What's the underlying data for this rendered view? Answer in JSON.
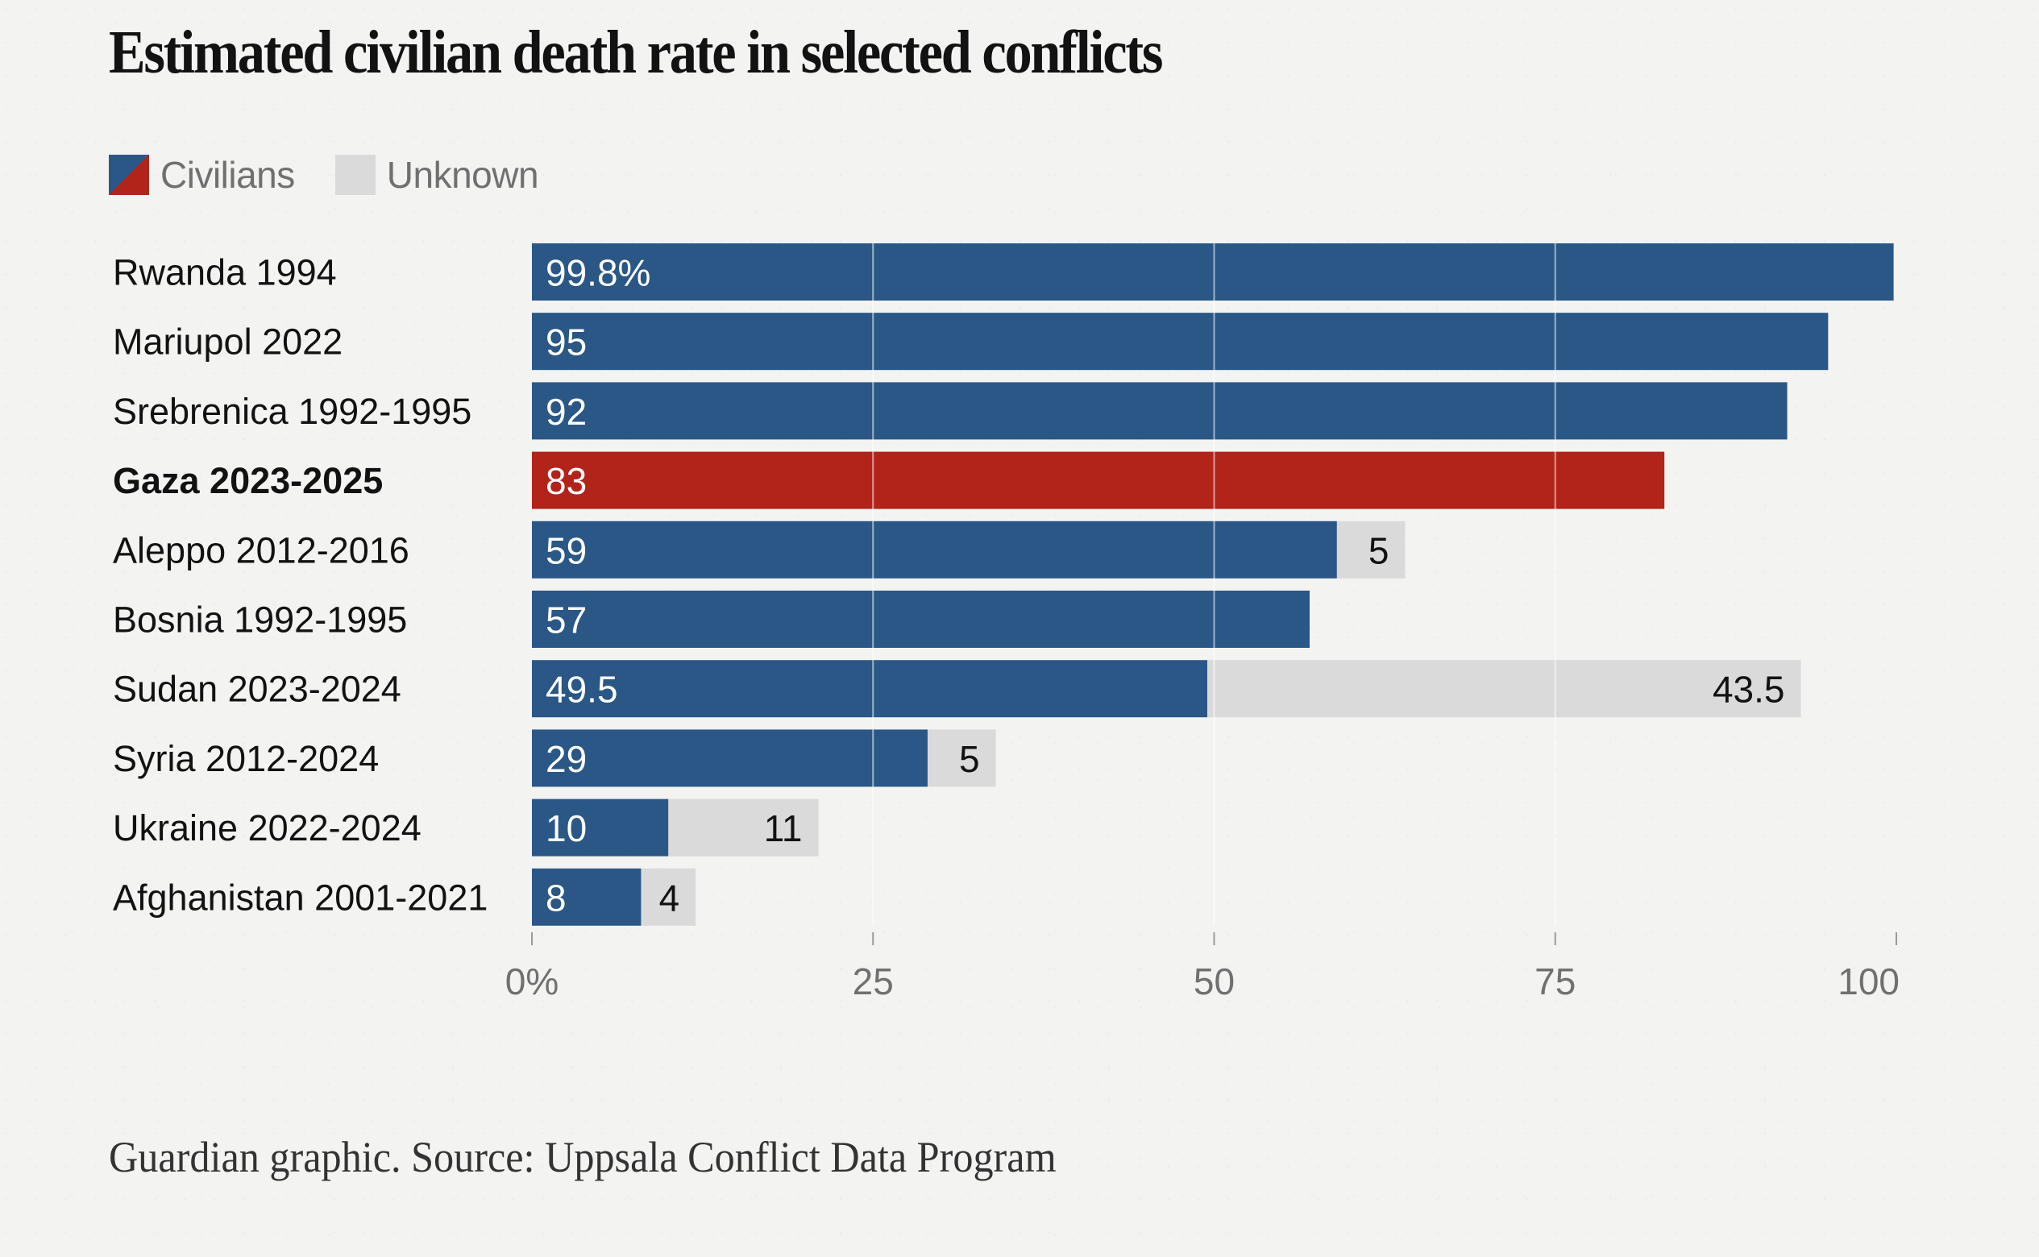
{
  "chart_data": {
    "type": "bar",
    "orientation": "horizontal",
    "stacked": true,
    "title": "Estimated civilian death rate in selected conflicts",
    "xlabel": "",
    "ylabel": "",
    "xlim": [
      0,
      100
    ],
    "x_ticks": [
      0,
      25,
      50,
      75,
      100
    ],
    "x_tick_labels": [
      "0%",
      "25",
      "50",
      "75",
      "100"
    ],
    "grid": true,
    "legend_position": "top-left",
    "categories": [
      "Rwanda 1994",
      "Mariupol 2022",
      "Srebrenica 1992-1995",
      "Gaza 2023-2025",
      "Aleppo 2012-2016",
      "Bosnia 1992-1995",
      "Sudan 2023-2024",
      "Syria 2012-2024",
      "Ukraine 2022-2024",
      "Afghanistan 2001-2021"
    ],
    "highlighted_category": "Gaza 2023-2025",
    "series": [
      {
        "name": "Civilians",
        "values": [
          99.8,
          95,
          92,
          83,
          59,
          57,
          49.5,
          29,
          10,
          8
        ],
        "labels": [
          "99.8%",
          "95",
          "92",
          "83",
          "59",
          "57",
          "49.5",
          "29",
          "10",
          "8"
        ]
      },
      {
        "name": "Unknown",
        "values": [
          0,
          0,
          0,
          0,
          5,
          0,
          43.5,
          5,
          11,
          4
        ],
        "labels": [
          "",
          "",
          "",
          "",
          "5",
          "",
          "43.5",
          "5",
          "11",
          "4"
        ]
      }
    ],
    "source": "Guardian graphic. Source: Uppsala Conflict Data Program"
  },
  "colors": {
    "civilians": "#2a5785",
    "highlight": "#b2231a",
    "unknown": "#dadada",
    "gridline": "rgba(255,255,255,0.55)",
    "tick": "#9a9a9a"
  },
  "legend": [
    {
      "label": "Civilians",
      "icon": "civilians-swatch-icon"
    },
    {
      "label": "Unknown",
      "icon": "unknown-swatch-icon"
    }
  ],
  "footer": "Guardian graphic. Source: Uppsala Conflict Data Program"
}
